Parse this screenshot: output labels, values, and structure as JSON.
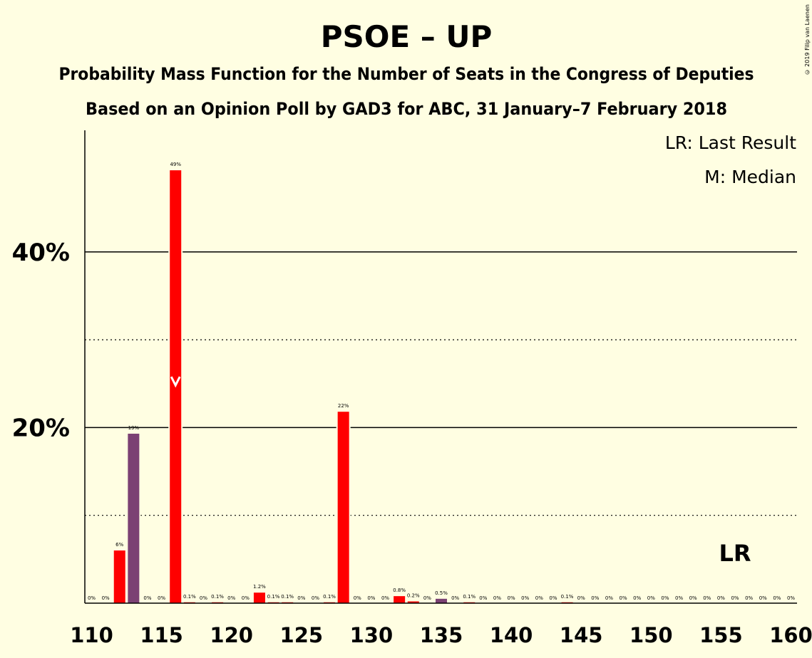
{
  "chart_data": {
    "type": "bar",
    "title": "PSOE – UP",
    "subtitle": "Probability Mass Function for the Number of Seats in the Congress of Deputies",
    "subtitle2": "Based on an Opinion Poll by GAD3 for ABC, 31 January–7 February 2018",
    "credit": "© 2019 Filip van Laenen",
    "legend": {
      "lr": "LR: Last Result",
      "m": "M: Median",
      "placement": "top-right"
    },
    "xlim": [
      110,
      160
    ],
    "ylim": [
      0,
      54
    ],
    "x_ticks": [
      "110",
      "115",
      "120",
      "125",
      "130",
      "135",
      "140",
      "145",
      "150",
      "155",
      "160"
    ],
    "y_ticks": [
      {
        "value": 20,
        "label": "20%"
      },
      {
        "value": 40,
        "label": "40%"
      }
    ],
    "y_minor_ticks": [
      10,
      30
    ],
    "median_seat": 116,
    "last_result_seat": 156,
    "last_result_label": "LR",
    "colors": {
      "bar": "#FF0000",
      "bar_alt": "#7B4173",
      "background": "#FFFEE2",
      "median_marker": "#FFFFFF"
    },
    "points": [
      {
        "x": 110,
        "value": 0,
        "label": "0%"
      },
      {
        "x": 111,
        "value": 0,
        "label": "0%"
      },
      {
        "x": 112,
        "value": 6,
        "label": "6%"
      },
      {
        "x": 113,
        "value": 19.3,
        "label": "19%",
        "alt": true
      },
      {
        "x": 114,
        "value": 0,
        "label": "0%"
      },
      {
        "x": 115,
        "value": 0,
        "label": "0%"
      },
      {
        "x": 116,
        "value": 49.3,
        "label": "49%"
      },
      {
        "x": 117,
        "value": 0.1,
        "label": "0.1%"
      },
      {
        "x": 118,
        "value": 0,
        "label": "0%"
      },
      {
        "x": 119,
        "value": 0.1,
        "label": "0.1%"
      },
      {
        "x": 120,
        "value": 0,
        "label": "0%"
      },
      {
        "x": 121,
        "value": 0,
        "label": "0%"
      },
      {
        "x": 122,
        "value": 1.2,
        "label": "1.2%"
      },
      {
        "x": 123,
        "value": 0.1,
        "label": "0.1%"
      },
      {
        "x": 124,
        "value": 0.1,
        "label": "0.1%"
      },
      {
        "x": 125,
        "value": 0,
        "label": "0%"
      },
      {
        "x": 126,
        "value": 0,
        "label": "0%"
      },
      {
        "x": 127,
        "value": 0.1,
        "label": "0.1%"
      },
      {
        "x": 128,
        "value": 21.8,
        "label": "22%"
      },
      {
        "x": 129,
        "value": 0,
        "label": "0%"
      },
      {
        "x": 130,
        "value": 0,
        "label": "0%"
      },
      {
        "x": 131,
        "value": 0,
        "label": "0%"
      },
      {
        "x": 132,
        "value": 0.8,
        "label": "0.8%"
      },
      {
        "x": 133,
        "value": 0.2,
        "label": "0.2%"
      },
      {
        "x": 134,
        "value": 0,
        "label": "0%"
      },
      {
        "x": 135,
        "value": 0.5,
        "label": "0.5%",
        "alt": true
      },
      {
        "x": 136,
        "value": 0,
        "label": "0%"
      },
      {
        "x": 137,
        "value": 0.1,
        "label": "0.1%"
      },
      {
        "x": 138,
        "value": 0,
        "label": "0%"
      },
      {
        "x": 139,
        "value": 0,
        "label": "0%"
      },
      {
        "x": 140,
        "value": 0,
        "label": "0%"
      },
      {
        "x": 141,
        "value": 0,
        "label": "0%"
      },
      {
        "x": 142,
        "value": 0,
        "label": "0%"
      },
      {
        "x": 143,
        "value": 0,
        "label": "0%"
      },
      {
        "x": 144,
        "value": 0.1,
        "label": "0.1%"
      },
      {
        "x": 145,
        "value": 0,
        "label": "0%"
      },
      {
        "x": 146,
        "value": 0,
        "label": "0%"
      },
      {
        "x": 147,
        "value": 0,
        "label": "0%"
      },
      {
        "x": 148,
        "value": 0,
        "label": "0%"
      },
      {
        "x": 149,
        "value": 0,
        "label": "0%"
      },
      {
        "x": 150,
        "value": 0,
        "label": "0%"
      },
      {
        "x": 151,
        "value": 0,
        "label": "0%"
      },
      {
        "x": 152,
        "value": 0,
        "label": "0%"
      },
      {
        "x": 153,
        "value": 0,
        "label": "0%"
      },
      {
        "x": 154,
        "value": 0,
        "label": "0%"
      },
      {
        "x": 155,
        "value": 0,
        "label": "0%"
      },
      {
        "x": 156,
        "value": 0,
        "label": "0%"
      },
      {
        "x": 157,
        "value": 0,
        "label": "0%"
      },
      {
        "x": 158,
        "value": 0,
        "label": "0%"
      },
      {
        "x": 159,
        "value": 0,
        "label": "0%"
      },
      {
        "x": 160,
        "value": 0,
        "label": "0%"
      }
    ]
  }
}
